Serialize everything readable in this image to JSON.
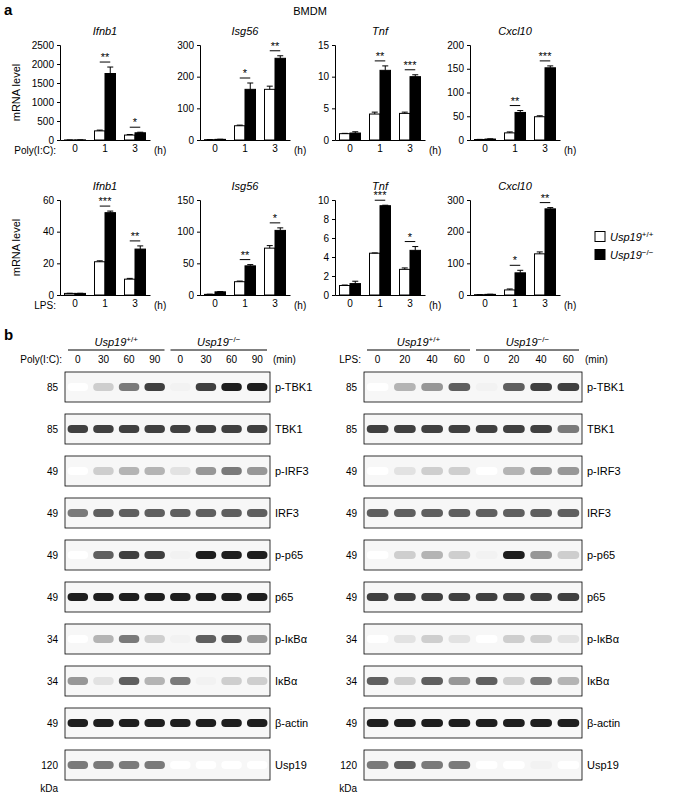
{
  "panel_labels": [
    "a",
    "b"
  ],
  "cell_label": "BMDM",
  "chart_data": [
    {
      "type": "bar",
      "title": "Ifnb1",
      "ylabel": "mRNA level",
      "xlabel": "Poly(I:C):",
      "xunit": "(h)",
      "categories": [
        "0",
        "1",
        "3"
      ],
      "ylim": [
        0,
        2500
      ],
      "yticks": [
        0,
        500,
        1000,
        1500,
        2000,
        2500
      ],
      "series": [
        {
          "color": "#ffffff",
          "values": [
            1,
            240,
            130
          ],
          "errors": [
            0.5,
            20,
            15
          ]
        },
        {
          "color": "#000000",
          "values": [
            3,
            1750,
            190
          ],
          "errors": [
            1,
            170,
            15
          ]
        }
      ],
      "significance": [
        null,
        "**",
        "*"
      ]
    },
    {
      "type": "bar",
      "title": "Isg56",
      "xunit": "(h)",
      "categories": [
        "0",
        "1",
        "3"
      ],
      "ylim": [
        0,
        300
      ],
      "yticks": [
        0,
        100,
        200,
        300
      ],
      "series": [
        {
          "color": "#ffffff",
          "values": [
            1,
            45,
            160
          ],
          "errors": [
            0.5,
            2,
            10
          ]
        },
        {
          "color": "#000000",
          "values": [
            2,
            160,
            258
          ],
          "errors": [
            0.5,
            20,
            8
          ]
        }
      ],
      "significance": [
        null,
        "*",
        "**"
      ]
    },
    {
      "type": "bar",
      "title": "Tnf",
      "xunit": "(h)",
      "categories": [
        "0",
        "1",
        "3"
      ],
      "ylim": [
        0,
        15
      ],
      "yticks": [
        0,
        5,
        10,
        15
      ],
      "series": [
        {
          "color": "#ffffff",
          "values": [
            1,
            4.1,
            4.2
          ],
          "errors": [
            0.05,
            0.3,
            0.2
          ]
        },
        {
          "color": "#000000",
          "values": [
            1.1,
            11,
            10
          ],
          "errors": [
            0.2,
            0.7,
            0.3
          ]
        }
      ],
      "significance": [
        null,
        "**",
        "***"
      ]
    },
    {
      "type": "bar",
      "title": "Cxcl10",
      "xunit": "(h)",
      "categories": [
        "0",
        "1",
        "3"
      ],
      "ylim": [
        0,
        200
      ],
      "yticks": [
        0,
        50,
        100,
        150,
        200
      ],
      "series": [
        {
          "color": "#ffffff",
          "values": [
            1,
            15,
            49
          ],
          "errors": [
            0.3,
            2,
            2
          ]
        },
        {
          "color": "#000000",
          "values": [
            2,
            58,
            152
          ],
          "errors": [
            0.5,
            4,
            4
          ]
        }
      ],
      "significance": [
        null,
        "**",
        "***"
      ]
    },
    {
      "type": "bar",
      "title": "Ifnb1",
      "ylabel": "mRNA level",
      "xlabel": "LPS:",
      "xunit": "(h)",
      "categories": [
        "0",
        "1",
        "3"
      ],
      "ylim": [
        0,
        60
      ],
      "yticks": [
        0,
        20,
        40,
        60
      ],
      "series": [
        {
          "color": "#ffffff",
          "values": [
            1,
            21,
            10
          ],
          "errors": [
            0.1,
            0.6,
            0.5
          ]
        },
        {
          "color": "#000000",
          "values": [
            1,
            52,
            29
          ],
          "errors": [
            0.1,
            1,
            2
          ]
        }
      ],
      "significance": [
        null,
        "***",
        "**"
      ]
    },
    {
      "type": "bar",
      "title": "Isg56",
      "xunit": "(h)",
      "categories": [
        "0",
        "1",
        "3"
      ],
      "ylim": [
        0,
        150
      ],
      "yticks": [
        0,
        50,
        100,
        150
      ],
      "series": [
        {
          "color": "#ffffff",
          "values": [
            1,
            21,
            74
          ],
          "errors": [
            0.3,
            1,
            4
          ]
        },
        {
          "color": "#000000",
          "values": [
            5,
            46,
            102
          ],
          "errors": [
            0.5,
            2,
            4
          ]
        }
      ],
      "significance": [
        null,
        "**",
        "*"
      ]
    },
    {
      "type": "bar",
      "title": "Tnf",
      "xunit": "(h)",
      "categories": [
        "0",
        "1",
        "3"
      ],
      "ylim": [
        0,
        10
      ],
      "yticks": [
        0,
        2,
        4,
        6,
        8,
        10
      ],
      "series": [
        {
          "color": "#ffffff",
          "values": [
            1,
            4.4,
            2.7
          ],
          "errors": [
            0.05,
            0.03,
            0.15
          ]
        },
        {
          "color": "#000000",
          "values": [
            1.2,
            9.4,
            4.7
          ],
          "errors": [
            0.25,
            0.05,
            0.4
          ]
        }
      ],
      "significance": [
        null,
        "***",
        "*"
      ]
    },
    {
      "type": "bar",
      "title": "Cxcl10",
      "xunit": "(h)",
      "legend": "right",
      "categories": [
        "0",
        "1",
        "3"
      ],
      "ylim": [
        0,
        300
      ],
      "yticks": [
        0,
        100,
        200,
        300
      ],
      "series": [
        {
          "name": "Usp19+/+",
          "color": "#ffffff",
          "values": [
            1,
            16,
            130
          ],
          "errors": [
            0.3,
            3,
            6
          ]
        },
        {
          "name": "Usp19−/−",
          "color": "#000000",
          "values": [
            2,
            70,
            272
          ],
          "errors": [
            0.5,
            8,
            4
          ]
        }
      ],
      "significance": [
        null,
        "*",
        "**"
      ]
    }
  ],
  "blots": [
    {
      "stimulus": "Poly(I:C):",
      "time_unit": "(min)",
      "mw_unit": "kDa",
      "genotypes": [
        "Usp19+/+",
        "Usp19−/−"
      ],
      "times": [
        "0",
        "30",
        "60",
        "90",
        "0",
        "30",
        "60",
        "90"
      ],
      "rows": [
        {
          "label": "p-TBK1",
          "mw": "85",
          "intensity": [
            0,
            0.3,
            0.6,
            0.8,
            0.1,
            0.8,
            0.9,
            0.9
          ]
        },
        {
          "label": "TBK1",
          "mw": "85",
          "intensity": [
            0.8,
            0.8,
            0.8,
            0.8,
            0.8,
            0.8,
            0.8,
            0.8
          ]
        },
        {
          "label": "p-IRF3",
          "mw": "49",
          "intensity": [
            0,
            0.3,
            0.4,
            0.4,
            0.2,
            0.5,
            0.6,
            0.5
          ]
        },
        {
          "label": "IRF3",
          "mw": "49",
          "intensity": [
            0.6,
            0.7,
            0.7,
            0.7,
            0.7,
            0.7,
            0.7,
            0.7
          ]
        },
        {
          "label": "p-p65",
          "mw": "49",
          "intensity": [
            0,
            0.7,
            0.8,
            0.8,
            0.1,
            0.9,
            0.9,
            0.9
          ]
        },
        {
          "label": "p65",
          "mw": "49",
          "intensity": [
            0.9,
            0.9,
            0.9,
            0.9,
            0.9,
            0.9,
            0.9,
            0.9
          ]
        },
        {
          "label": "p-IκBα",
          "mw": "34",
          "intensity": [
            0,
            0.4,
            0.6,
            0.3,
            0.1,
            0.7,
            0.7,
            0.5
          ]
        },
        {
          "label": "IκBα",
          "mw": "34",
          "intensity": [
            0.5,
            0.2,
            0.7,
            0.4,
            0.6,
            0.1,
            0.3,
            0.3
          ]
        },
        {
          "label": "β-actin",
          "mw": "49",
          "intensity": [
            0.9,
            0.9,
            0.9,
            0.9,
            0.9,
            0.9,
            0.9,
            0.9
          ]
        },
        {
          "label": "Usp19",
          "mw": "120",
          "intensity": [
            0.6,
            0.6,
            0.6,
            0.6,
            0,
            0,
            0,
            0
          ]
        }
      ]
    },
    {
      "stimulus": "LPS:",
      "time_unit": "(min)",
      "mw_unit": "kDa",
      "genotypes": [
        "Usp19+/+",
        "Usp19−/−"
      ],
      "times": [
        "0",
        "20",
        "40",
        "60",
        "0",
        "20",
        "40",
        "60"
      ],
      "rows": [
        {
          "label": "p-TBK1",
          "mw": "85",
          "intensity": [
            0,
            0.4,
            0.5,
            0.7,
            0.1,
            0.7,
            0.8,
            0.8
          ]
        },
        {
          "label": "TBK1",
          "mw": "85",
          "intensity": [
            0.8,
            0.8,
            0.8,
            0.8,
            0.8,
            0.8,
            0.8,
            0.6
          ]
        },
        {
          "label": "p-IRF3",
          "mw": "49",
          "intensity": [
            0,
            0.2,
            0.3,
            0.3,
            0,
            0.4,
            0.5,
            0.5
          ]
        },
        {
          "label": "IRF3",
          "mw": "49",
          "intensity": [
            0.7,
            0.7,
            0.7,
            0.7,
            0.7,
            0.7,
            0.7,
            0.7
          ]
        },
        {
          "label": "p-p65",
          "mw": "49",
          "intensity": [
            0,
            0.3,
            0.4,
            0.3,
            0.1,
            0.9,
            0.5,
            0.3
          ]
        },
        {
          "label": "p65",
          "mw": "49",
          "intensity": [
            0.8,
            0.8,
            0.8,
            0.8,
            0.8,
            0.8,
            0.8,
            0.8
          ]
        },
        {
          "label": "p-IκBα",
          "mw": "34",
          "intensity": [
            0,
            0.2,
            0.3,
            0.2,
            0,
            0.3,
            0.3,
            0.2
          ]
        },
        {
          "label": "IκBα",
          "mw": "34",
          "intensity": [
            0.7,
            0.3,
            0.7,
            0.5,
            0.7,
            0.3,
            0.6,
            0.4
          ]
        },
        {
          "label": "β-actin",
          "mw": "49",
          "intensity": [
            0.9,
            0.9,
            0.9,
            0.9,
            0.9,
            0.9,
            0.9,
            0.9
          ]
        },
        {
          "label": "Usp19",
          "mw": "120",
          "intensity": [
            0.6,
            0.7,
            0.6,
            0.6,
            0,
            0,
            0.1,
            0
          ]
        }
      ]
    }
  ]
}
